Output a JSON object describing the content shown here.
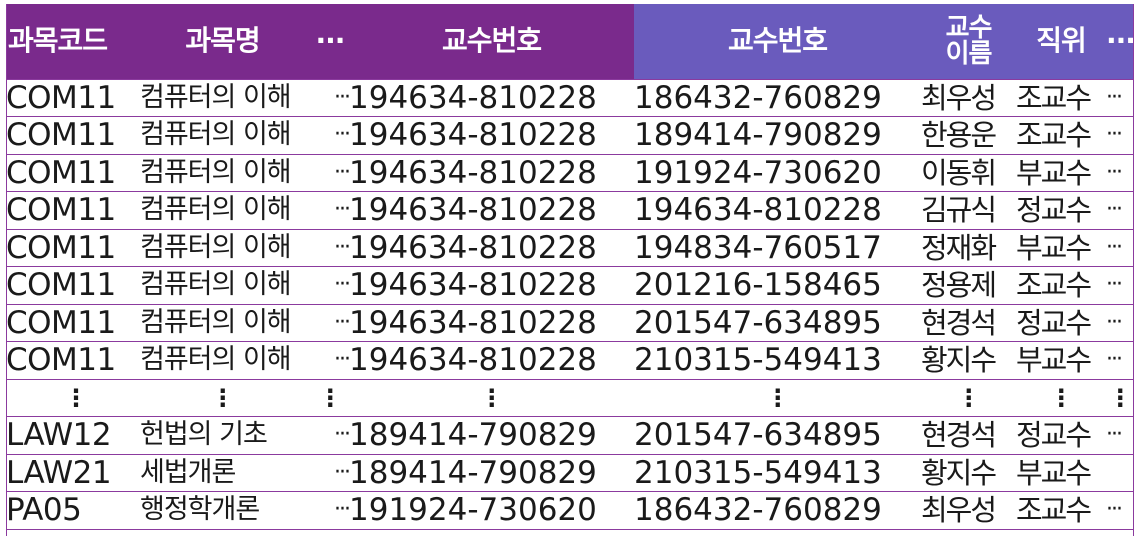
{
  "header": {
    "subject_code": "과목코드",
    "subject_name": "과목명",
    "ellipsis": "···",
    "professor_no_left": "교수번호",
    "professor_no_right": "교수번호",
    "professor_name": "교수\n이름",
    "position": "직위",
    "ellipsis_right": "···"
  },
  "colors": {
    "left_header": "#7a2a8c",
    "right_header": "#6a5bbd",
    "row_border": "#8b3a9e"
  },
  "rows": [
    {
      "code": "COM11",
      "name": "컴퓨터의 이해",
      "ell": "···",
      "pno1": "194634-810228",
      "pno2": "186432-760829",
      "pname": "최우성",
      "pos": "조교수",
      "tail": "···"
    },
    {
      "code": "COM11",
      "name": "컴퓨터의 이해",
      "ell": "···",
      "pno1": "194634-810228",
      "pno2": "189414-790829",
      "pname": "한용운",
      "pos": "조교수",
      "tail": "···"
    },
    {
      "code": "COM11",
      "name": "컴퓨터의 이해",
      "ell": "···",
      "pno1": "194634-810228",
      "pno2": "191924-730620",
      "pname": "이동휘",
      "pos": "부교수",
      "tail": "···"
    },
    {
      "code": "COM11",
      "name": "컴퓨터의 이해",
      "ell": "···",
      "pno1": "194634-810228",
      "pno2": "194634-810228",
      "pname": "김규식",
      "pos": "정교수",
      "tail": "···"
    },
    {
      "code": "COM11",
      "name": "컴퓨터의 이해",
      "ell": "···",
      "pno1": "194634-810228",
      "pno2": "194834-760517",
      "pname": "정재화",
      "pos": "부교수",
      "tail": "···"
    },
    {
      "code": "COM11",
      "name": "컴퓨터의 이해",
      "ell": "···",
      "pno1": "194634-810228",
      "pno2": "201216-158465",
      "pname": "정용제",
      "pos": "조교수",
      "tail": "···"
    },
    {
      "code": "COM11",
      "name": "컴퓨터의 이해",
      "ell": "···",
      "pno1": "194634-810228",
      "pno2": "201547-634895",
      "pname": "현경석",
      "pos": "정교수",
      "tail": "···"
    },
    {
      "code": "COM11",
      "name": "컴퓨터의 이해",
      "ell": "···",
      "pno1": "194634-810228",
      "pno2": "210315-549413",
      "pname": "황지수",
      "pos": "부교수",
      "tail": "···"
    }
  ],
  "vdots": "⋮",
  "rows_bottom": [
    {
      "code": "LAW12",
      "name": "헌법의 기초",
      "ell": "···",
      "pno1": "189414-790829",
      "pno2": "201547-634895",
      "pname": "현경석",
      "pos": "정교수",
      "tail": "···"
    },
    {
      "code": "LAW21",
      "name": "세법개론",
      "ell": "···",
      "pno1": "189414-790829",
      "pno2": "210315-549413",
      "pname": "황지수",
      "pos": "부교수",
      "tail": ""
    },
    {
      "code": "PA05",
      "name": "행정학개론",
      "ell": "···",
      "pno1": "191924-730620",
      "pno2": "186432-760829",
      "pname": "최우성",
      "pos": "조교수",
      "tail": "···"
    }
  ]
}
